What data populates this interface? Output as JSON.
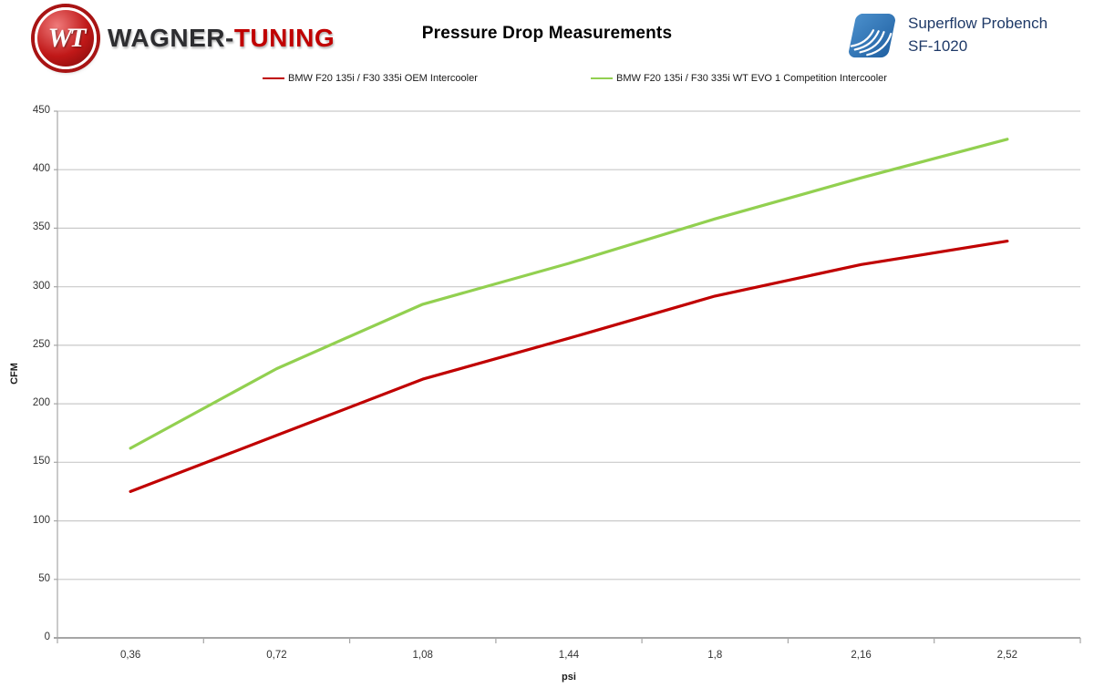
{
  "header": {
    "brand": {
      "emblem": "WT",
      "name_primary": "WAGNER-",
      "name_secondary": "TUNING",
      "brand_red": "#C00000",
      "brand_dark": "#2D2D30"
    },
    "bench": {
      "line1": "Superflow Probench",
      "line2": "SF-1020",
      "text_color": "#1F3A68",
      "logo_color": "#2E6DA8"
    }
  },
  "colors": {
    "gridline": "#C9C9C9",
    "axis": "#A6A6A6",
    "label": "#333333"
  },
  "chart_data": {
    "type": "line",
    "title": "Pressure Drop Measurements",
    "xlabel": "psi",
    "ylabel": "CFM",
    "categories": [
      "0,36",
      "0,72",
      "1,08",
      "1,44",
      "1,8",
      "2,16",
      "2,52"
    ],
    "categories_numeric": [
      0.36,
      0.72,
      1.08,
      1.44,
      1.8,
      2.16,
      2.52
    ],
    "ylim": [
      0,
      450
    ],
    "ytick_step": 50,
    "grid": true,
    "legend_position": "top",
    "series": [
      {
        "name": "BMW F20 135i / F30 335i OEM Intercooler",
        "color": "#C00000",
        "values": [
          125,
          173,
          221,
          256,
          292,
          319,
          339
        ]
      },
      {
        "name": "BMW F20 135i / F30 335i WT EVO 1 Competition Intercooler",
        "color": "#92D050",
        "values": [
          162,
          230,
          285,
          320,
          358,
          393,
          426
        ]
      }
    ]
  }
}
